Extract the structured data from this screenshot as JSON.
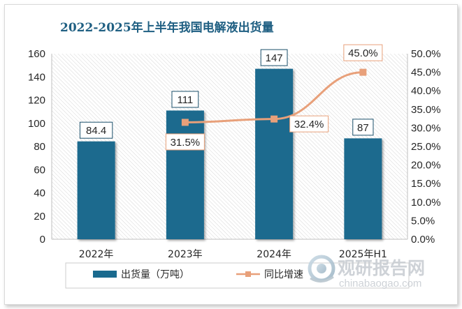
{
  "chart_data": {
    "type": "bar",
    "title": "2022-2025年上半年我国电解液出货量",
    "categories": [
      "2022年",
      "2023年",
      "2024年",
      "2025年H1"
    ],
    "series": [
      {
        "name": "出货量（万吨）",
        "type": "bar",
        "axis": "left",
        "values": [
          84.4,
          111,
          147,
          87
        ],
        "labels": [
          "84.4",
          "111",
          "147",
          "87"
        ],
        "color": "#1a6a8e"
      },
      {
        "name": "同比增速",
        "type": "line",
        "axis": "right",
        "values": [
          null,
          31.5,
          32.4,
          45.0
        ],
        "labels": [
          "",
          "31.5%",
          "32.4%",
          "45.0%"
        ],
        "color": "#e8a07a"
      }
    ],
    "ylim_left": [
      0,
      160
    ],
    "left_ticks": [
      "0",
      "20",
      "40",
      "60",
      "80",
      "100",
      "120",
      "140",
      "160"
    ],
    "ylim_right": [
      0,
      50
    ],
    "right_ticks": [
      "0.0%",
      "5.0%",
      "10.0%",
      "15.0%",
      "20.0%",
      "25.0%",
      "30.0%",
      "35.0%",
      "40.0%",
      "45.0%",
      "50.0%"
    ],
    "grid": false,
    "legend_position": "bottom"
  },
  "watermark": {
    "cn": "观研报告网",
    "en": "chinabaogao.com"
  }
}
